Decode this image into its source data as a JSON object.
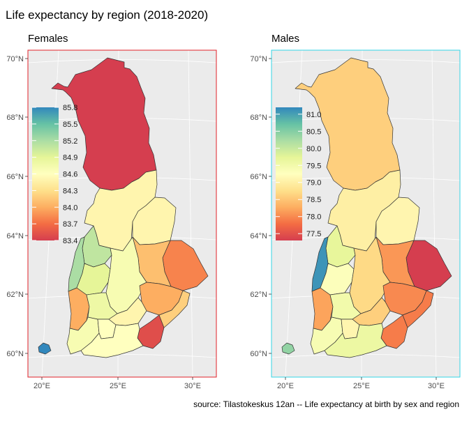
{
  "title": "Life expectancy by region (2018-2020)",
  "caption": "source: Tilastokeskus 12an -- Life expectancy at birth by sex and region",
  "colors": {
    "panel_bg": "#ebebeb",
    "grid": "#ffffff",
    "females_border": "#e0202a",
    "males_border": "#33d4e6",
    "region_outline": "#333333",
    "scale": [
      "#d53e4f",
      "#f46d43",
      "#fdae61",
      "#fee08b",
      "#ffffbf",
      "#e6f598",
      "#abdda4",
      "#66c2a5",
      "#3288bd"
    ]
  },
  "axes": {
    "lat_ticks": [
      "70°N",
      "68°N",
      "66°N",
      "64°N",
      "62°N",
      "60°N"
    ],
    "lon_ticks": [
      "20°E",
      "25°E",
      "30°E"
    ]
  },
  "panels": [
    {
      "id": "females",
      "title": "Females",
      "legend": {
        "labels": [
          "85.8",
          "85.5",
          "85.2",
          "84.9",
          "84.6",
          "84.3",
          "84.0",
          "83.7",
          "83.4"
        ],
        "min": 83.4,
        "max": 85.8
      },
      "regions": {
        "lapland": 83.4,
        "north_ostrobothnia": 84.5,
        "kainuu": 84.5,
        "north_karelia": 83.8,
        "north_savo": 84.1,
        "central_ostrobothnia": 85.1,
        "ostrobothnia": 85.2,
        "south_ostrobothnia": 84.9,
        "central_finland": 84.7,
        "south_savo": 84.0,
        "southwest_finland": 84.7,
        "satakunta": 84.0,
        "pirkanmaa": 84.8,
        "kanta_hame": 84.6,
        "paijat_hame": 84.5,
        "kymenlaakso": 83.5,
        "south_karelia": 84.2,
        "uusimaa": 84.6,
        "aland": 85.8
      }
    },
    {
      "id": "males",
      "title": "Males",
      "legend": {
        "labels": [
          "81.0",
          "80.5",
          "80.0",
          "79.5",
          "79.0",
          "78.5",
          "78.0",
          "77.5"
        ],
        "min": 77.3,
        "max": 81.2
      },
      "regions": {
        "lapland": 78.6,
        "north_ostrobothnia": 79.0,
        "kainuu": 79.1,
        "north_karelia": 77.3,
        "north_savo": 78.1,
        "central_ostrobothnia": 79.7,
        "ostrobothnia": 81.1,
        "south_ostrobothnia": 79.3,
        "central_finland": 78.7,
        "south_savo": 78.0,
        "southwest_finland": 79.4,
        "satakunta": 78.2,
        "pirkanmaa": 79.5,
        "kanta_hame": 79.1,
        "paijat_hame": 78.6,
        "kymenlaakso": 77.9,
        "south_karelia": 77.9,
        "uusimaa": 79.6,
        "aland": 80.4
      }
    }
  ]
}
